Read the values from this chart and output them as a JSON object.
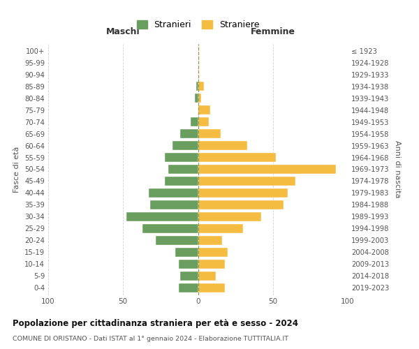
{
  "age_groups": [
    "0-4",
    "5-9",
    "10-14",
    "15-19",
    "20-24",
    "25-29",
    "30-34",
    "35-39",
    "40-44",
    "45-49",
    "50-54",
    "55-59",
    "60-64",
    "65-69",
    "70-74",
    "75-79",
    "80-84",
    "85-89",
    "90-94",
    "95-99",
    "100+"
  ],
  "birth_years": [
    "2019-2023",
    "2014-2018",
    "2009-2013",
    "2004-2008",
    "1999-2003",
    "1994-1998",
    "1989-1993",
    "1984-1988",
    "1979-1983",
    "1974-1978",
    "1969-1973",
    "1964-1968",
    "1959-1963",
    "1954-1958",
    "1949-1953",
    "1944-1948",
    "1939-1943",
    "1934-1938",
    "1929-1933",
    "1924-1928",
    "≤ 1923"
  ],
  "maschi": [
    13,
    12,
    13,
    15,
    28,
    37,
    48,
    32,
    33,
    22,
    20,
    22,
    17,
    12,
    5,
    0,
    2,
    1,
    0,
    0,
    0
  ],
  "femmine": [
    18,
    12,
    18,
    20,
    16,
    30,
    42,
    57,
    60,
    65,
    92,
    52,
    33,
    15,
    7,
    8,
    2,
    4,
    0,
    0,
    0
  ],
  "color_maschi": "#6a9e5e",
  "color_femmine": "#f5bc42",
  "title": "Popolazione per cittadinanza straniera per età e sesso - 2024",
  "subtitle": "COMUNE DI ORISTANO - Dati ISTAT al 1° gennaio 2024 - Elaborazione TUTTITALIA.IT",
  "xlabel_left": "Maschi",
  "xlabel_right": "Femmine",
  "ylabel_left": "Fasce di età",
  "ylabel_right": "Anni di nascita",
  "legend_maschi": "Stranieri",
  "legend_femmine": "Straniere",
  "xlim": 100,
  "bg_color": "#ffffff",
  "grid_color": "#d0d0d0"
}
